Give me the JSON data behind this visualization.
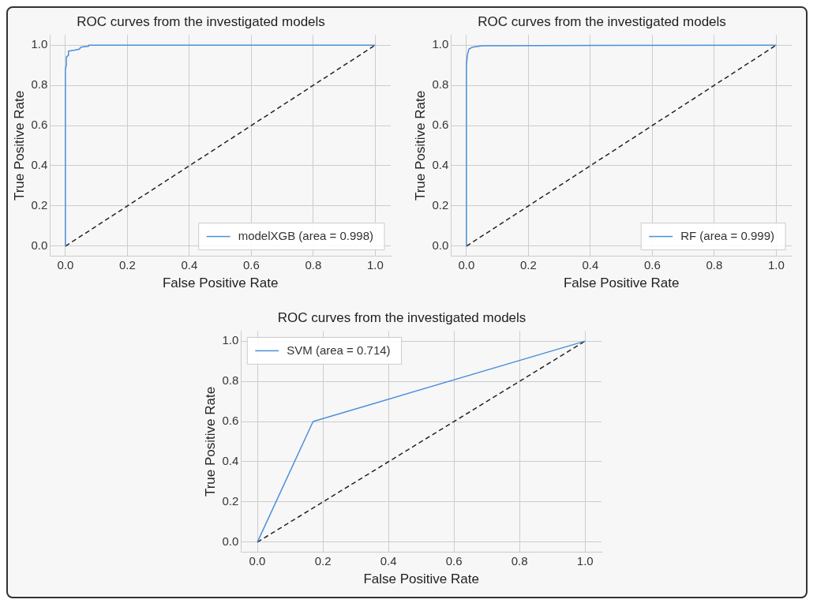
{
  "chart_data": [
    {
      "type": "line",
      "title": "ROC curves from the investigated models",
      "xlabel": "False Positive Rate",
      "ylabel": "True Positive Rate",
      "xlim": [
        -0.05,
        1.05
      ],
      "ylim": [
        -0.05,
        1.05
      ],
      "xticks": [
        {
          "value": 0,
          "label": "0.0"
        },
        {
          "value": 0.2,
          "label": "0.2"
        },
        {
          "value": 0.4,
          "label": "0.4"
        },
        {
          "value": 0.6,
          "label": "0.6"
        },
        {
          "value": 0.8,
          "label": "0.8"
        },
        {
          "value": 1,
          "label": "1.0"
        }
      ],
      "yticks": [
        {
          "value": 0,
          "label": "0.0"
        },
        {
          "value": 0.2,
          "label": "0.2"
        },
        {
          "value": 0.4,
          "label": "0.4"
        },
        {
          "value": 0.6,
          "label": "0.6"
        },
        {
          "value": 0.8,
          "label": "0.8"
        },
        {
          "value": 1,
          "label": "1.0"
        }
      ],
      "grid": true,
      "legend": "bottom right",
      "series": [
        {
          "name": "modelXGB (area = 0.998)",
          "color": "#4a90d9",
          "line_style": "solid",
          "x": [
            0,
            0,
            0.003,
            0.003,
            0.01,
            0.01,
            0.03,
            0.045,
            0.05,
            0.075,
            0.075,
            1
          ],
          "values": [
            0,
            0.88,
            0.9,
            0.94,
            0.95,
            0.97,
            0.975,
            0.98,
            0.99,
            0.995,
            1,
            1
          ]
        },
        {
          "color": "#222222",
          "line_style": "dashed",
          "x": [
            0,
            1
          ],
          "values": [
            0,
            1
          ]
        }
      ]
    },
    {
      "type": "line",
      "title": "ROC curves from the investigated models",
      "xlabel": "False Positive Rate",
      "ylabel": "True Positive Rate",
      "xlim": [
        -0.05,
        1.05
      ],
      "ylim": [
        -0.05,
        1.05
      ],
      "xticks": [
        {
          "value": 0,
          "label": "0.0"
        },
        {
          "value": 0.2,
          "label": "0.2"
        },
        {
          "value": 0.4,
          "label": "0.4"
        },
        {
          "value": 0.6,
          "label": "0.6"
        },
        {
          "value": 0.8,
          "label": "0.8"
        },
        {
          "value": 1,
          "label": "1.0"
        }
      ],
      "yticks": [
        {
          "value": 0,
          "label": "0.0"
        },
        {
          "value": 0.2,
          "label": "0.2"
        },
        {
          "value": 0.4,
          "label": "0.4"
        },
        {
          "value": 0.6,
          "label": "0.6"
        },
        {
          "value": 0.8,
          "label": "0.8"
        },
        {
          "value": 1,
          "label": "1.0"
        }
      ],
      "grid": true,
      "legend": "bottom right",
      "series": [
        {
          "name": "RF (area = 0.999)",
          "color": "#4a90d9",
          "line_style": "solid",
          "x": [
            0,
            0,
            0.003,
            0.008,
            0.02,
            0.05,
            1
          ],
          "values": [
            0,
            0.9,
            0.95,
            0.98,
            0.99,
            0.997,
            1
          ]
        },
        {
          "color": "#222222",
          "line_style": "dashed",
          "x": [
            0,
            1
          ],
          "values": [
            0,
            1
          ]
        }
      ]
    },
    {
      "type": "line",
      "title": "ROC curves from the investigated models",
      "xlabel": "False Positive Rate",
      "ylabel": "True Positive Rate",
      "xlim": [
        -0.05,
        1.05
      ],
      "ylim": [
        -0.05,
        1.05
      ],
      "xticks": [
        {
          "value": 0,
          "label": "0.0"
        },
        {
          "value": 0.2,
          "label": "0.2"
        },
        {
          "value": 0.4,
          "label": "0.4"
        },
        {
          "value": 0.6,
          "label": "0.6"
        },
        {
          "value": 0.8,
          "label": "0.8"
        },
        {
          "value": 1,
          "label": "1.0"
        }
      ],
      "yticks": [
        {
          "value": 0,
          "label": "0.0"
        },
        {
          "value": 0.2,
          "label": "0.2"
        },
        {
          "value": 0.4,
          "label": "0.4"
        },
        {
          "value": 0.6,
          "label": "0.6"
        },
        {
          "value": 0.8,
          "label": "0.8"
        },
        {
          "value": 1,
          "label": "1.0"
        }
      ],
      "grid": true,
      "legend": "top left",
      "series": [
        {
          "name": "SVM (area = 0.714)",
          "color": "#4a90d9",
          "line_style": "solid",
          "x": [
            0,
            0.17,
            1
          ],
          "values": [
            0,
            0.6,
            1
          ]
        },
        {
          "color": "#222222",
          "line_style": "dashed",
          "x": [
            0,
            1
          ],
          "values": [
            0,
            1
          ]
        }
      ]
    }
  ]
}
